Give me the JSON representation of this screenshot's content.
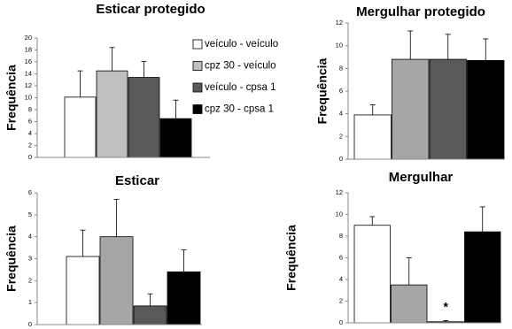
{
  "chart_data": [
    {
      "type": "bar",
      "title": "Esticar protegido",
      "y_label": "Frequência",
      "series": [
        {
          "name": "veículo - veículo",
          "color": "#ffffff",
          "values": [
            10.1
          ],
          "errors": [
            4.4
          ]
        },
        {
          "name": "cpz 30 - veículo",
          "color": "#bfbfbf",
          "values": [
            14.5
          ],
          "errors": [
            3.9
          ]
        },
        {
          "name": "veículo - cpsa 1",
          "color": "#595959",
          "values": [
            13.4
          ],
          "errors": [
            2.7
          ]
        },
        {
          "name": "cpz 30 - cpsa 1",
          "color": "#000000",
          "values": [
            6.5
          ],
          "errors": [
            3.1
          ]
        }
      ],
      "ylim": [
        0,
        20
      ],
      "yticks": [
        0,
        2,
        4,
        6,
        8,
        10,
        12,
        14,
        16,
        18,
        20
      ],
      "legend": "right"
    },
    {
      "type": "bar",
      "title": "Mergulhar protegido",
      "y_label": "Frequência",
      "values": [
        3.9,
        8.8,
        8.8,
        8.7
      ],
      "errors": [
        0.9,
        2.5,
        2.2,
        1.9
      ],
      "colors": [
        "#ffffff",
        "#a6a6a6",
        "#595959",
        "#000000"
      ],
      "ylim": [
        0,
        12
      ],
      "yticks": [
        0,
        2,
        4,
        6,
        8,
        10,
        12
      ]
    },
    {
      "type": "bar",
      "title": "Esticar",
      "y_label": "Frequência",
      "values": [
        3.1,
        4.0,
        0.85,
        2.4
      ],
      "errors": [
        1.2,
        1.7,
        0.55,
        1.0
      ],
      "colors": [
        "#ffffff",
        "#a6a6a6",
        "#595959",
        "#000000"
      ],
      "ylim": [
        0,
        6
      ],
      "yticks": [
        0,
        1,
        2,
        3,
        4,
        5,
        6
      ]
    },
    {
      "type": "bar",
      "title": "Mergulhar",
      "y_label": "Frequência",
      "values": [
        9.0,
        3.5,
        0.1,
        8.4
      ],
      "errors": [
        0.8,
        2.5,
        0.1,
        2.3
      ],
      "colors": [
        "#ffffff",
        "#a6a6a6",
        "#595959",
        "#000000"
      ],
      "ylim": [
        0,
        12
      ],
      "yticks": [
        0,
        2,
        4,
        6,
        8,
        10,
        12
      ],
      "annotations": [
        {
          "text": "*"
        }
      ]
    }
  ]
}
